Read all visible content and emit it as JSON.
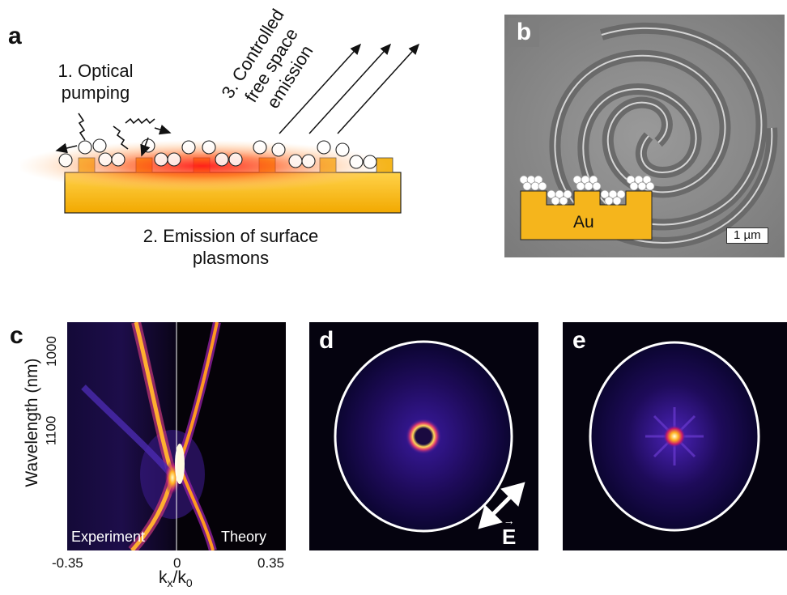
{
  "panels": {
    "a": {
      "label": "a",
      "pump_line1": "1. Optical",
      "pump_line2": "pumping",
      "emission_line1": "2. Emission of surface",
      "emission_line2": "plasmons",
      "controlled_line1": "3. Controlled",
      "controlled_line2": "free space",
      "controlled_line3": "emission"
    },
    "b": {
      "label": "b",
      "metal": "Au",
      "scalebar": "1 µm"
    },
    "c": {
      "label": "c",
      "ylabel": "Wavelength (nm)",
      "yticks": [
        "1000",
        "1100"
      ],
      "xticks": [
        "-0.35",
        "0",
        "0.35"
      ],
      "xlabel_main": "k",
      "xlabel_sub1": "x",
      "xlabel_slash": "/k",
      "xlabel_sub2": "0",
      "left_caption": "Experiment",
      "right_caption": "Theory"
    },
    "d": {
      "label": "d",
      "field_symbol": "E"
    },
    "e": {
      "label": "e"
    }
  }
}
